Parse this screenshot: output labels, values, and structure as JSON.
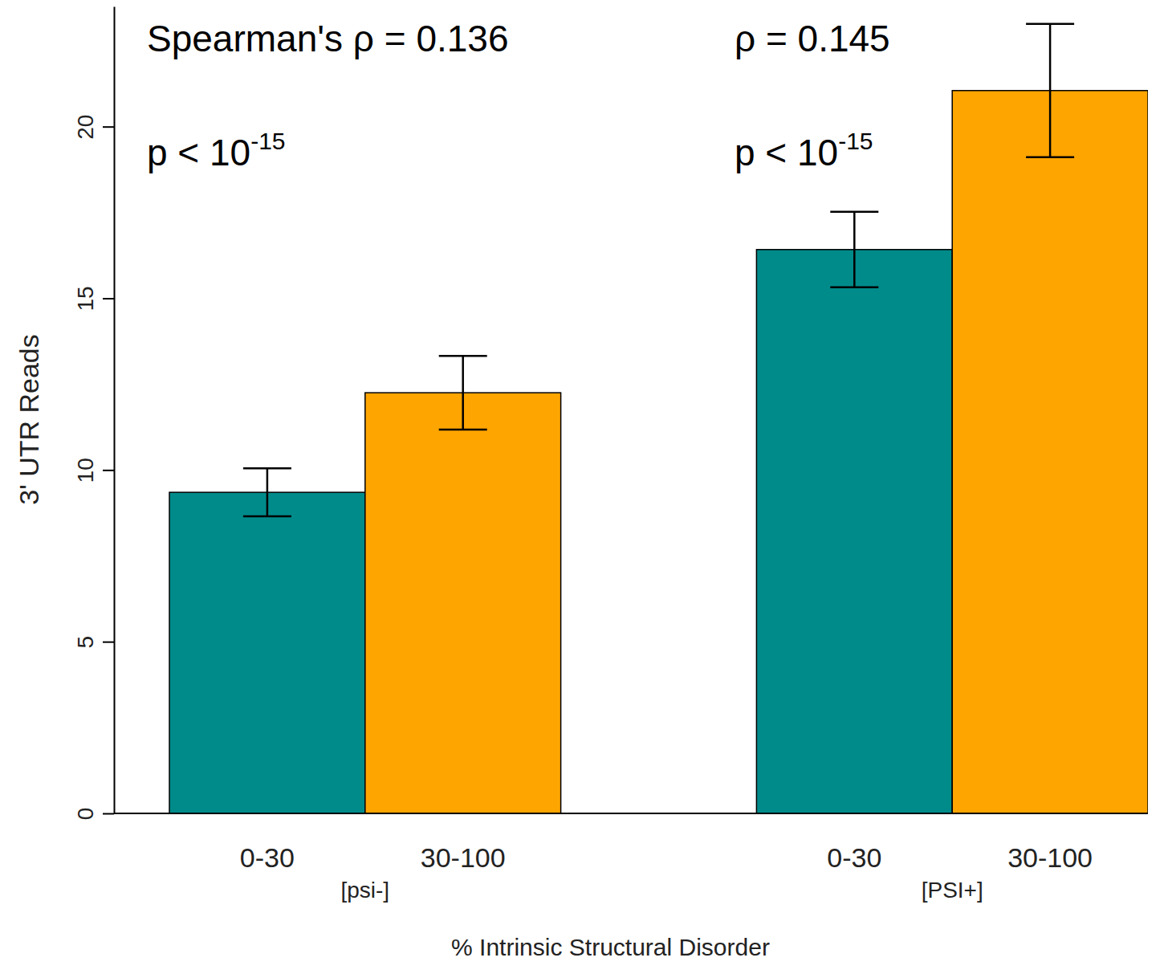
{
  "chart_data": {
    "type": "bar",
    "categories": [
      "[psi-]",
      "[PSI+]"
    ],
    "series": [
      {
        "name": "0-30",
        "color": "#008b8b",
        "values": [
          9.35,
          16.42
        ],
        "errors": [
          0.7,
          1.1
        ]
      },
      {
        "name": "30-100",
        "color": "#ffa500",
        "values": [
          12.25,
          21.05
        ],
        "errors": [
          1.07,
          1.94
        ]
      }
    ],
    "x_label": "% Intrinsic Structural Disorder",
    "y_label": "3' UTR Reads",
    "ylim": [
      0,
      23.5
    ],
    "yticks": [
      0,
      5,
      10,
      15,
      20
    ],
    "annotations": [
      {
        "text": "Spearman's ρ = 0.136"
      },
      {
        "text": "p < 10",
        "superscript": "-15"
      },
      {
        "text": "ρ = 0.145"
      },
      {
        "text": "p < 10",
        "superscript": "-15"
      }
    ]
  }
}
